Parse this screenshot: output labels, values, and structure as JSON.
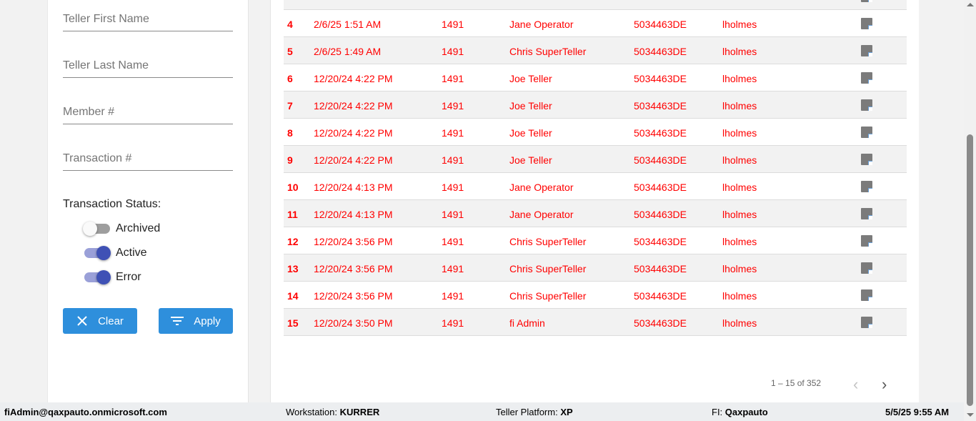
{
  "filters": {
    "teller_first_name": {
      "placeholder": "Teller First Name",
      "value": ""
    },
    "teller_last_name": {
      "placeholder": "Teller Last Name",
      "value": ""
    },
    "member": {
      "placeholder": "Member #",
      "value": ""
    },
    "transaction": {
      "placeholder": "Transaction #",
      "value": ""
    },
    "status_label": "Transaction Status:",
    "statuses": [
      {
        "label": "Archived",
        "on": false
      },
      {
        "label": "Active",
        "on": true
      },
      {
        "label": "Error",
        "on": true
      }
    ],
    "clear_label": "Clear",
    "apply_label": "Apply"
  },
  "table": {
    "rows": [
      [
        "",
        "",
        "",
        "",
        "",
        "",
        ""
      ],
      [
        "4",
        "2/6/25 1:51 AM",
        "1491",
        "Jane Operator",
        "5034463DE",
        "lholmes"
      ],
      [
        "5",
        "2/6/25 1:49 AM",
        "1491",
        "Chris SuperTeller",
        "5034463DE",
        "lholmes"
      ],
      [
        "6",
        "12/20/24 4:22 PM",
        "1491",
        "Joe Teller",
        "5034463DE",
        "lholmes"
      ],
      [
        "7",
        "12/20/24 4:22 PM",
        "1491",
        "Joe Teller",
        "5034463DE",
        "lholmes"
      ],
      [
        "8",
        "12/20/24 4:22 PM",
        "1491",
        "Joe Teller",
        "5034463DE",
        "lholmes"
      ],
      [
        "9",
        "12/20/24 4:22 PM",
        "1491",
        "Joe Teller",
        "5034463DE",
        "lholmes"
      ],
      [
        "10",
        "12/20/24 4:13 PM",
        "1491",
        "Jane Operator",
        "5034463DE",
        "lholmes"
      ],
      [
        "11",
        "12/20/24 4:13 PM",
        "1491",
        "Jane Operator",
        "5034463DE",
        "lholmes"
      ],
      [
        "12",
        "12/20/24 3:56 PM",
        "1491",
        "Chris SuperTeller",
        "5034463DE",
        "lholmes"
      ],
      [
        "13",
        "12/20/24 3:56 PM",
        "1491",
        "Chris SuperTeller",
        "5034463DE",
        "lholmes"
      ],
      [
        "14",
        "12/20/24 3:56 PM",
        "1491",
        "Chris SuperTeller",
        "5034463DE",
        "lholmes"
      ],
      [
        "15",
        "12/20/24 3:50 PM",
        "1491",
        "fi Admin",
        "5034463DE",
        "lholmes"
      ]
    ],
    "row_icon": "note-icon",
    "text_color": "#ff0000"
  },
  "pagination": {
    "range": "1 – 15 of 352",
    "prev": "‹",
    "next": "›"
  },
  "footer": {
    "user": "fiAdmin@qaxpauto.onmicrosoft.com",
    "workstation_label": "Workstation:",
    "workstation": "KURRER",
    "platform_label": "Teller Platform:",
    "platform": "XP",
    "fi_label": "FI:",
    "fi": "Qaxpauto",
    "datetime": "5/5/25 9:55 AM"
  }
}
